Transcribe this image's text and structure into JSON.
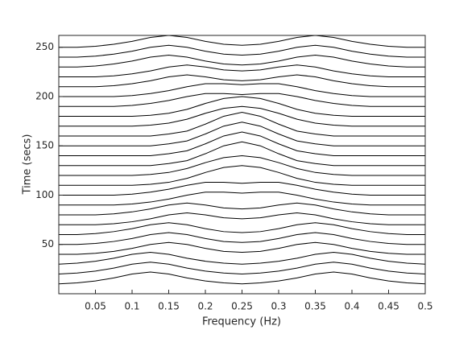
{
  "chart_data": {
    "type": "waterfall",
    "xlabel": "Frequency (Hz)",
    "ylabel": "Time (secs)",
    "x": [
      0,
      0.025,
      0.05,
      0.075,
      0.1,
      0.125,
      0.15,
      0.175,
      0.2,
      0.225,
      0.25,
      0.275,
      0.3,
      0.325,
      0.35,
      0.375,
      0.4,
      0.425,
      0.45,
      0.475,
      0.5
    ],
    "xlim": [
      0,
      0.5
    ],
    "xticks": [
      0.05,
      0.1,
      0.15,
      0.2,
      0.25,
      0.3,
      0.35,
      0.4,
      0.45,
      0.5
    ],
    "ylim": [
      0,
      262
    ],
    "yticks": [
      50,
      100,
      150,
      200,
      250
    ],
    "color": "#000000",
    "series": [
      {
        "values": [
          10,
          11,
          13,
          16,
          20,
          22,
          20,
          16,
          13,
          11,
          10,
          11,
          13,
          16,
          20,
          22,
          20,
          16,
          13,
          11,
          10
        ]
      },
      {
        "values": [
          20,
          21,
          23,
          26,
          30,
          32,
          30,
          26,
          23,
          21,
          20,
          21,
          23,
          26,
          30,
          32,
          30,
          26,
          23,
          21,
          20
        ]
      },
      {
        "values": [
          30,
          31,
          33,
          36,
          40,
          42,
          40,
          36,
          33,
          31,
          30,
          31,
          33,
          36,
          40,
          42,
          40,
          36,
          33,
          31,
          30
        ]
      },
      {
        "values": [
          40,
          40,
          41,
          43,
          46,
          50,
          52,
          50,
          46,
          43,
          42,
          43,
          46,
          50,
          52,
          50,
          46,
          43,
          41,
          40,
          40
        ]
      },
      {
        "values": [
          50,
          50,
          51,
          53,
          56,
          60,
          62,
          60,
          56,
          53,
          52,
          53,
          56,
          60,
          62,
          60,
          56,
          53,
          51,
          50,
          50
        ]
      },
      {
        "values": [
          60,
          60,
          61,
          63,
          66,
          70,
          72,
          70,
          66,
          63,
          62,
          63,
          66,
          70,
          72,
          70,
          66,
          63,
          61,
          60,
          60
        ]
      },
      {
        "values": [
          70,
          70,
          70,
          71,
          73,
          76,
          80,
          82,
          80,
          77,
          76,
          77,
          80,
          82,
          80,
          76,
          73,
          71,
          70,
          70,
          70
        ]
      },
      {
        "values": [
          80,
          80,
          80,
          81,
          83,
          86,
          90,
          92,
          90,
          87,
          86,
          87,
          90,
          92,
          90,
          86,
          83,
          81,
          80,
          80,
          80
        ]
      },
      {
        "values": [
          90,
          90,
          90,
          90,
          91,
          93,
          96,
          100,
          103,
          103,
          102,
          103,
          103,
          100,
          96,
          93,
          91,
          90,
          90,
          90,
          90
        ]
      },
      {
        "values": [
          100,
          100,
          100,
          100,
          101,
          103,
          106,
          110,
          113,
          113,
          112,
          113,
          113,
          110,
          106,
          103,
          101,
          100,
          100,
          100,
          100
        ]
      },
      {
        "values": [
          110,
          110,
          110,
          110,
          110,
          111,
          113,
          117,
          123,
          128,
          130,
          128,
          123,
          117,
          113,
          111,
          110,
          110,
          110,
          110,
          110
        ]
      },
      {
        "values": [
          120,
          120,
          120,
          120,
          120,
          121,
          123,
          127,
          133,
          138,
          140,
          138,
          133,
          127,
          123,
          121,
          120,
          120,
          120,
          120,
          120
        ]
      },
      {
        "values": [
          130,
          130,
          130,
          130,
          130,
          130,
          132,
          135,
          142,
          150,
          154,
          150,
          142,
          135,
          132,
          130,
          130,
          130,
          130,
          130,
          130
        ]
      },
      {
        "values": [
          140,
          140,
          140,
          140,
          140,
          140,
          142,
          145,
          152,
          160,
          164,
          160,
          152,
          145,
          142,
          140,
          140,
          140,
          140,
          140,
          140
        ]
      },
      {
        "values": [
          150,
          150,
          150,
          150,
          150,
          150,
          152,
          155,
          162,
          170,
          174,
          170,
          162,
          155,
          152,
          150,
          150,
          150,
          150,
          150,
          150
        ]
      },
      {
        "values": [
          160,
          160,
          160,
          160,
          160,
          160,
          162,
          165,
          172,
          180,
          184,
          180,
          172,
          165,
          162,
          160,
          160,
          160,
          160,
          160,
          160
        ]
      },
      {
        "values": [
          170,
          170,
          170,
          170,
          170,
          171,
          173,
          177,
          183,
          188,
          190,
          188,
          183,
          177,
          173,
          171,
          170,
          170,
          170,
          170,
          170
        ]
      },
      {
        "values": [
          180,
          180,
          180,
          180,
          180,
          181,
          183,
          187,
          193,
          198,
          200,
          198,
          193,
          187,
          183,
          181,
          180,
          180,
          180,
          180,
          180
        ]
      },
      {
        "values": [
          190,
          190,
          190,
          190,
          191,
          193,
          196,
          200,
          203,
          203,
          202,
          203,
          203,
          200,
          196,
          193,
          191,
          190,
          190,
          190,
          190
        ]
      },
      {
        "values": [
          200,
          200,
          200,
          200,
          201,
          203,
          206,
          210,
          213,
          213,
          212,
          213,
          213,
          210,
          206,
          203,
          201,
          200,
          200,
          200,
          200
        ]
      },
      {
        "values": [
          210,
          210,
          210,
          211,
          213,
          216,
          220,
          222,
          220,
          217,
          216,
          217,
          220,
          222,
          220,
          216,
          213,
          211,
          210,
          210,
          210
        ]
      },
      {
        "values": [
          220,
          220,
          220,
          221,
          223,
          226,
          230,
          232,
          230,
          227,
          226,
          227,
          230,
          232,
          230,
          226,
          223,
          221,
          220,
          220,
          220
        ]
      },
      {
        "values": [
          230,
          230,
          231,
          233,
          236,
          240,
          242,
          240,
          236,
          233,
          232,
          233,
          236,
          240,
          242,
          240,
          236,
          233,
          231,
          230,
          230
        ]
      },
      {
        "values": [
          240,
          240,
          241,
          243,
          246,
          250,
          252,
          250,
          246,
          243,
          242,
          243,
          246,
          250,
          252,
          250,
          246,
          243,
          241,
          240,
          240
        ]
      },
      {
        "values": [
          250,
          250,
          251,
          253,
          256,
          260,
          262,
          260,
          256,
          253,
          252,
          253,
          256,
          260,
          262,
          260,
          256,
          253,
          251,
          250,
          250
        ]
      }
    ]
  }
}
